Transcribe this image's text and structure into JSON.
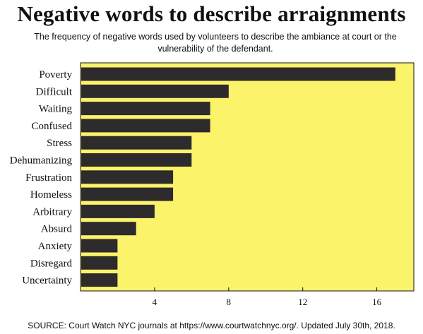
{
  "title": "Negative words to describe arraignments",
  "subtitle": "The frequency of negative words used by volunteers to describe the ambiance at court or the vulnerability of the defendant.",
  "source": "SOURCE: Court Watch NYC journals at https://www.courtwatchnyc.org/. Updated July 30th, 2018.",
  "colors": {
    "plot_background": "#fbf36a",
    "bar": "#2d2b2b",
    "frame": "#111111"
  },
  "chart_data": {
    "type": "bar",
    "orientation": "horizontal",
    "categories": [
      "Poverty",
      "Difficult",
      "Waiting",
      "Confused",
      "Stress",
      "Dehumanizing",
      "Frustration",
      "Homeless",
      "Arbitrary",
      "Absurd",
      "Anxiety",
      "Disregard",
      "Uncertainty"
    ],
    "values": [
      17,
      8,
      7,
      7,
      6,
      6,
      5,
      5,
      4,
      3,
      2,
      2,
      2
    ],
    "xlim": [
      0,
      18
    ],
    "xticks": [
      4,
      8,
      12,
      16
    ],
    "xlabel": "",
    "ylabel": "",
    "grid": false,
    "legend": "none"
  }
}
